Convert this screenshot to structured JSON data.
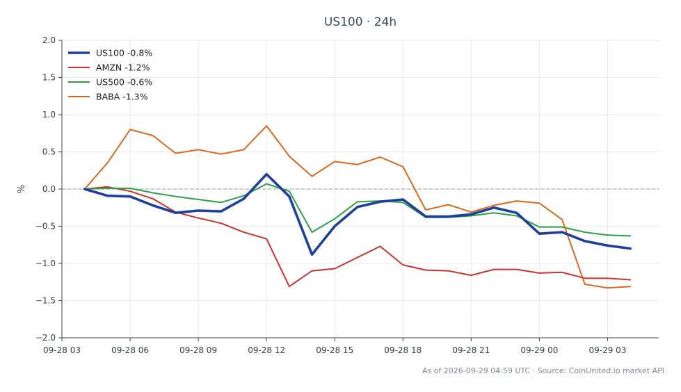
{
  "chart_data": {
    "type": "line",
    "title": "US100 · 24h",
    "xlabel": "",
    "ylabel": "%",
    "ylim": [
      -2.0,
      2.0
    ],
    "yticks": [
      -2.0,
      -1.5,
      -1.0,
      -0.5,
      0.0,
      0.5,
      1.0,
      1.5,
      2.0
    ],
    "ytick_labels": [
      "−2.0",
      "−1.5",
      "−1.0",
      "−0.5",
      "0.0",
      "0.5",
      "1.0",
      "1.5",
      "2.0"
    ],
    "xlim": [
      "2026-09-28 03:00",
      "2026-09-29 05:15"
    ],
    "xticks": [
      "2026-09-28 03:00",
      "2026-09-28 06:00",
      "2026-09-28 09:00",
      "2026-09-28 12:00",
      "2026-09-28 15:00",
      "2026-09-28 18:00",
      "2026-09-28 21:00",
      "2026-09-29 00:00",
      "2026-09-29 03:00"
    ],
    "xtick_labels": [
      "09-28 03",
      "09-28 06",
      "09-28 09",
      "09-28 12",
      "09-28 15",
      "09-28 18",
      "09-28 21",
      "09-29 00",
      "09-29 03"
    ],
    "x": [
      "2026-09-28 04:00",
      "2026-09-28 05:00",
      "2026-09-28 06:00",
      "2026-09-28 07:00",
      "2026-09-28 08:00",
      "2026-09-28 09:00",
      "2026-09-28 10:00",
      "2026-09-28 11:00",
      "2026-09-28 12:00",
      "2026-09-28 13:00",
      "2026-09-28 14:00",
      "2026-09-28 15:00",
      "2026-09-28 16:00",
      "2026-09-28 17:00",
      "2026-09-28 18:00",
      "2026-09-28 19:00",
      "2026-09-28 20:00",
      "2026-09-28 21:00",
      "2026-09-28 22:00",
      "2026-09-28 23:00",
      "2026-09-29 00:00",
      "2026-09-29 01:00",
      "2026-09-29 02:00",
      "2026-09-29 03:00",
      "2026-09-29 04:00"
    ],
    "series": [
      {
        "name": "US100 -0.8%",
        "color": "#1f3f9c",
        "emphasis": true,
        "values": [
          0.0,
          -0.09,
          -0.1,
          -0.22,
          -0.32,
          -0.29,
          -0.3,
          -0.13,
          0.2,
          -0.1,
          -0.88,
          -0.5,
          -0.24,
          -0.17,
          -0.14,
          -0.37,
          -0.37,
          -0.34,
          -0.25,
          -0.32,
          -0.6,
          -0.58,
          -0.7,
          -0.76,
          -0.8
        ]
      },
      {
        "name": "AMZN -1.2%",
        "color": "#c9312c",
        "emphasis": false,
        "values": [
          0.0,
          0.03,
          -0.03,
          -0.13,
          -0.31,
          -0.39,
          -0.46,
          -0.58,
          -0.67,
          -1.31,
          -1.1,
          -1.07,
          -0.92,
          -0.77,
          -1.02,
          -1.09,
          -1.1,
          -1.16,
          -1.08,
          -1.08,
          -1.13,
          -1.12,
          -1.2,
          -1.2,
          -1.22
        ]
      },
      {
        "name": "US500 -0.6%",
        "color": "#2ca043",
        "emphasis": false,
        "values": [
          0.0,
          0.01,
          0.01,
          -0.05,
          -0.1,
          -0.14,
          -0.18,
          -0.09,
          0.07,
          -0.03,
          -0.58,
          -0.4,
          -0.17,
          -0.16,
          -0.18,
          -0.38,
          -0.38,
          -0.36,
          -0.32,
          -0.36,
          -0.51,
          -0.51,
          -0.58,
          -0.62,
          -0.63
        ]
      },
      {
        "name": "BABA -1.3%",
        "color": "#d9681f",
        "emphasis": false,
        "values": [
          0.0,
          0.35,
          0.8,
          0.72,
          0.48,
          0.53,
          0.47,
          0.53,
          0.85,
          0.44,
          0.17,
          0.37,
          0.33,
          0.43,
          0.3,
          -0.28,
          -0.21,
          -0.31,
          -0.22,
          -0.16,
          -0.19,
          -0.41,
          -1.28,
          -1.33,
          -1.31
        ]
      }
    ],
    "zero_line": true,
    "grid": true,
    "legend_position": "top-left"
  },
  "footer": {
    "text": "As of 2026-09-29 04:59 UTC · Source: CoinUnited.io market API"
  }
}
